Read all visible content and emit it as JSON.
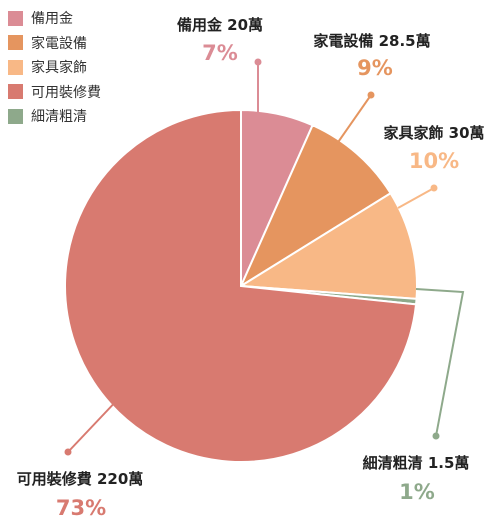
{
  "chart_data": {
    "type": "pie",
    "slices": [
      {
        "label": "備用金",
        "value_label": "備用金 20萬",
        "value": 20,
        "percent": 7,
        "percent_label": "7%",
        "color": "#db8c95"
      },
      {
        "label": "家電設備",
        "value_label": "家電設備 28.5萬",
        "value": 28.5,
        "percent": 9,
        "percent_label": "9%",
        "color": "#e5955f"
      },
      {
        "label": "家具家飾",
        "value_label": "家具家飾 30萬",
        "value": 30,
        "percent": 10,
        "percent_label": "10%",
        "color": "#f8b886"
      },
      {
        "label": "細清粗清",
        "value_label": "細清粗清 1.5萬",
        "value": 1.5,
        "percent": 1,
        "percent_label": "1%",
        "color": "#8ea98b"
      },
      {
        "label": "可用裝修費",
        "value_label": "可用裝修費 220萬",
        "value": 220,
        "percent": 73,
        "percent_label": "73%",
        "color": "#d87a70"
      }
    ],
    "legend": [
      "備用金",
      "家電設備",
      "家具家飾",
      "可用裝修費",
      "細清粗清"
    ],
    "legend_position": "top-left"
  }
}
